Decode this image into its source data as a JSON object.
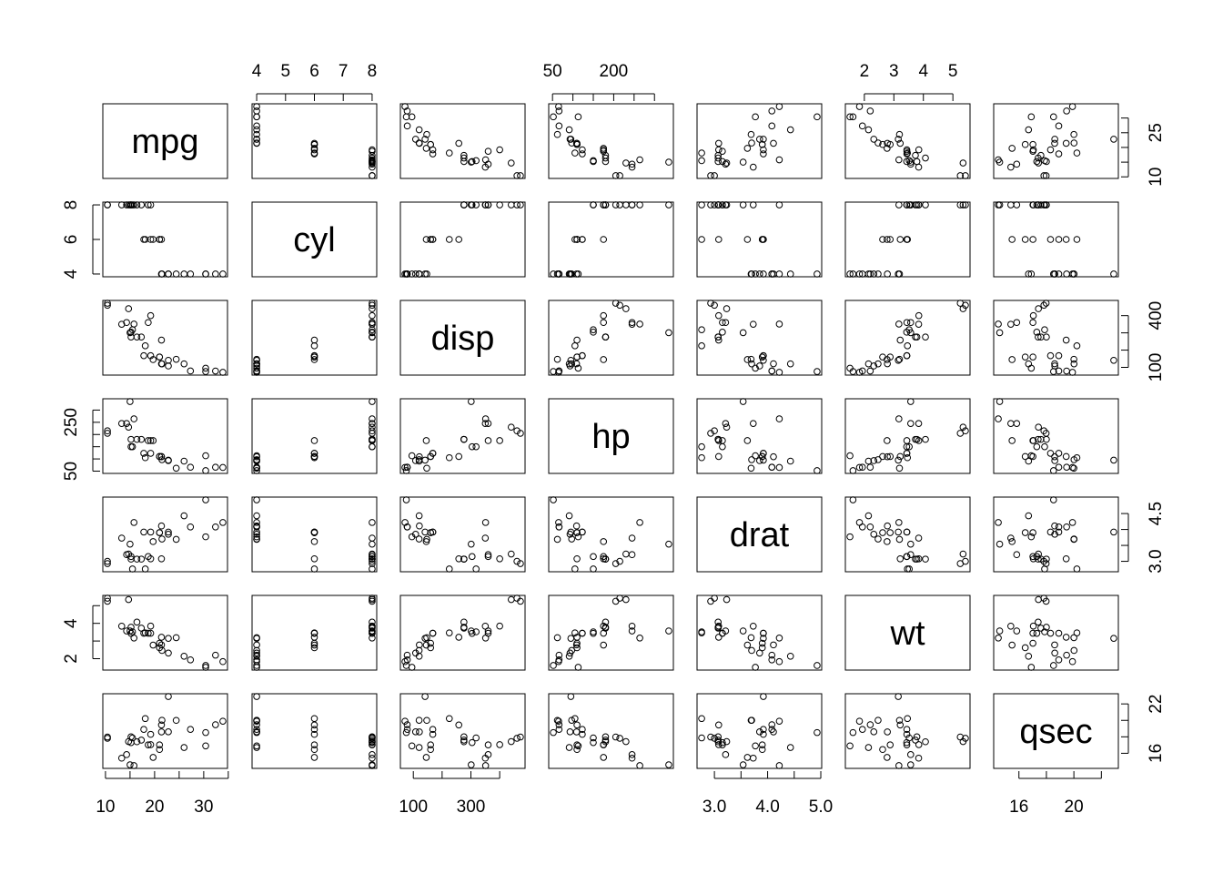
{
  "chart_data": {
    "type": "scatter",
    "subtype": "pairs-matrix",
    "variables": [
      "mpg",
      "cyl",
      "disp",
      "hp",
      "drat",
      "wt",
      "qsec"
    ],
    "data": {
      "mpg": [
        21,
        21,
        22.8,
        21.4,
        18.7,
        18.1,
        14.3,
        24.4,
        22.8,
        19.2,
        17.8,
        16.4,
        17.3,
        15.2,
        10.4,
        10.4,
        14.7,
        32.4,
        30.4,
        33.9,
        21.5,
        15.5,
        15.2,
        13.3,
        19.2,
        27.3,
        26,
        30.4,
        15.8,
        19.7,
        15,
        21.4
      ],
      "cyl": [
        6,
        6,
        4,
        6,
        8,
        6,
        8,
        4,
        4,
        6,
        6,
        8,
        8,
        8,
        8,
        8,
        8,
        4,
        4,
        4,
        4,
        8,
        8,
        8,
        8,
        4,
        4,
        4,
        8,
        6,
        8,
        4
      ],
      "disp": [
        160,
        160,
        108,
        258,
        360,
        225,
        360,
        146.7,
        140.8,
        167.6,
        167.6,
        275.8,
        275.8,
        275.8,
        472,
        460,
        440,
        78.7,
        75.7,
        71.1,
        120.1,
        318,
        304,
        350,
        400,
        79,
        120.3,
        95.1,
        351,
        145,
        301,
        121
      ],
      "hp": [
        110,
        110,
        93,
        110,
        175,
        105,
        245,
        62,
        95,
        123,
        123,
        180,
        180,
        180,
        205,
        215,
        230,
        66,
        52,
        65,
        97,
        150,
        150,
        245,
        175,
        66,
        91,
        113,
        264,
        175,
        335,
        109
      ],
      "drat": [
        3.9,
        3.9,
        3.85,
        3.08,
        3.15,
        2.76,
        3.21,
        3.69,
        3.92,
        3.92,
        3.92,
        3.07,
        3.07,
        3.07,
        2.93,
        3,
        3.23,
        4.08,
        4.93,
        4.22,
        3.7,
        2.76,
        3.15,
        3.73,
        3.08,
        4.08,
        4.43,
        3.77,
        4.22,
        3.62,
        3.54,
        4.11
      ],
      "wt": [
        2.62,
        2.875,
        2.32,
        3.215,
        3.44,
        3.46,
        3.57,
        3.19,
        3.15,
        3.44,
        3.44,
        4.07,
        3.73,
        3.78,
        5.25,
        5.424,
        5.345,
        2.2,
        1.615,
        1.835,
        2.465,
        3.52,
        3.435,
        3.84,
        3.845,
        1.935,
        2.14,
        1.513,
        3.17,
        2.77,
        3.57,
        2.78
      ],
      "qsec": [
        16.46,
        17.02,
        18.61,
        19.44,
        17.02,
        20.22,
        15.84,
        20,
        22.9,
        18.3,
        18.9,
        17.4,
        17.6,
        18,
        17.98,
        17.82,
        17.42,
        19.47,
        18.52,
        19.9,
        20.01,
        17.87,
        17.3,
        15.41,
        17.05,
        18.9,
        16.7,
        16.9,
        14.5,
        15.5,
        14.6,
        18.6
      ]
    },
    "axes": {
      "mpg": {
        "side": "bottom/right",
        "ticks": [
          10,
          15,
          20,
          25,
          30,
          35
        ],
        "labels_bottom": [
          "10",
          "20",
          "30"
        ],
        "ticks_right": [
          10,
          15,
          20,
          25,
          30
        ],
        "labels_right": [
          "10",
          "25"
        ]
      },
      "cyl": {
        "side": "top/left",
        "ticks": [
          4,
          5,
          6,
          7,
          8
        ],
        "labels_top": [
          "4",
          "5",
          "6",
          "7",
          "8"
        ],
        "ticks_left": [
          4,
          6,
          8
        ],
        "labels_left": [
          "4",
          "6",
          "8"
        ]
      },
      "disp": {
        "side": "bottom/right",
        "ticks": [
          100,
          200,
          300,
          400
        ],
        "labels_bottom": [
          "100",
          "300"
        ],
        "ticks_right": [
          100,
          200,
          300,
          400
        ],
        "labels_right": [
          "100",
          "400"
        ]
      },
      "hp": {
        "side": "top/left",
        "ticks": [
          50,
          100,
          150,
          200,
          250,
          300
        ],
        "labels_top": [
          "50",
          "200"
        ],
        "ticks_left": [
          50,
          100,
          150,
          200,
          250,
          300
        ],
        "labels_left": [
          "50",
          "250"
        ]
      },
      "drat": {
        "side": "bottom/right",
        "ticks": [
          3.0,
          3.5,
          4.0,
          4.5,
          5.0
        ],
        "labels_bottom": [
          "3.0",
          "4.0",
          "5.0"
        ],
        "ticks_right": [
          3.0,
          3.5,
          4.0,
          4.5
        ],
        "labels_right": [
          "3.0",
          "4.5"
        ]
      },
      "wt": {
        "side": "top/left",
        "ticks": [
          2,
          3,
          4,
          5
        ],
        "labels_top": [
          "2",
          "3",
          "4",
          "5"
        ],
        "ticks_left": [
          2,
          3,
          4,
          5
        ],
        "labels_left": [
          "2",
          "4"
        ]
      },
      "qsec": {
        "side": "bottom/right",
        "ticks": [
          16,
          18,
          20,
          22
        ],
        "labels_bottom": [
          "16",
          "20"
        ],
        "ticks_right": [
          16,
          18,
          20,
          22
        ],
        "labels_right": [
          "16",
          "22"
        ]
      }
    },
    "grid": false,
    "point_style": "open-circle",
    "color": "#000000"
  }
}
